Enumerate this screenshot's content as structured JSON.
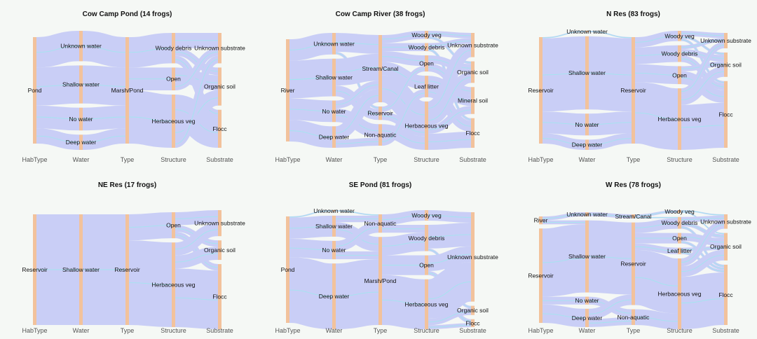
{
  "chart_data": [
    {
      "type": "sankey",
      "title": "Cow Camp Pond (14 frogs)",
      "axes": [
        "HabType",
        "Water",
        "Type",
        "Structure",
        "Substrate"
      ],
      "nodes": [
        [
          "Pond"
        ],
        [
          "Unknown water",
          "Shallow water",
          "No water",
          "Deep water"
        ],
        [
          "Marsh/Pond"
        ],
        [
          "Woody debris",
          "Open",
          "Herbaceous veg"
        ],
        [
          "Unknown substrate",
          "Organic soil",
          "Flocc"
        ]
      ],
      "flows": [
        [
          [
            0,
            0,
            4
          ],
          [
            0,
            1,
            5
          ],
          [
            0,
            2,
            3
          ],
          [
            0,
            3,
            2
          ]
        ],
        [
          [
            0,
            0,
            4
          ],
          [
            1,
            0,
            5
          ],
          [
            2,
            0,
            3
          ],
          [
            3,
            0,
            2
          ]
        ],
        [
          [
            0,
            0,
            4
          ],
          [
            0,
            1,
            3
          ],
          [
            0,
            2,
            7
          ]
        ],
        [
          [
            0,
            0,
            2
          ],
          [
            0,
            1,
            1
          ],
          [
            0,
            2,
            1
          ],
          [
            1,
            1,
            2
          ],
          [
            1,
            0,
            1
          ],
          [
            2,
            2,
            4
          ],
          [
            2,
            1,
            2
          ],
          [
            2,
            0,
            1
          ]
        ]
      ]
    },
    {
      "type": "sankey",
      "title": "Cow Camp River (38 frogs)",
      "axes": [
        "HabType",
        "Water",
        "Type",
        "Structure",
        "Substrate"
      ],
      "nodes": [
        [
          "River"
        ],
        [
          "Unknown water",
          "Shallow water",
          "No water",
          "Deep water"
        ],
        [
          "Stream/Canal",
          "Reservoir",
          "Non-aquatic"
        ],
        [
          "Woody veg",
          "Woody debris",
          "Open",
          "Leaf litter",
          "Herbaceous veg"
        ],
        [
          "Unknown substrate",
          "Organic soil",
          "Mineral soil",
          "Flocc"
        ]
      ],
      "flows": [
        [
          [
            0,
            0,
            8
          ],
          [
            0,
            1,
            14
          ],
          [
            0,
            2,
            8
          ],
          [
            0,
            3,
            8
          ]
        ],
        [
          [
            0,
            0,
            7
          ],
          [
            0,
            1,
            1
          ],
          [
            1,
            0,
            10
          ],
          [
            1,
            1,
            4
          ],
          [
            2,
            0,
            3
          ],
          [
            2,
            2,
            5
          ],
          [
            3,
            0,
            5
          ],
          [
            3,
            2,
            3
          ]
        ],
        [
          [
            0,
            0,
            3
          ],
          [
            0,
            1,
            3
          ],
          [
            0,
            2,
            4
          ],
          [
            0,
            3,
            5
          ],
          [
            0,
            4,
            10
          ],
          [
            1,
            2,
            2
          ],
          [
            1,
            4,
            3
          ],
          [
            2,
            4,
            5
          ],
          [
            2,
            3,
            3
          ]
        ],
        [
          [
            0,
            0,
            2
          ],
          [
            0,
            1,
            1
          ],
          [
            1,
            0,
            2
          ],
          [
            1,
            3,
            1
          ],
          [
            2,
            1,
            3
          ],
          [
            2,
            2,
            3
          ],
          [
            3,
            2,
            4
          ],
          [
            3,
            3,
            4
          ],
          [
            4,
            0,
            5
          ],
          [
            4,
            1,
            4
          ],
          [
            4,
            2,
            3
          ],
          [
            4,
            3,
            6
          ]
        ]
      ]
    },
    {
      "type": "sankey",
      "title": "N Res (83 frogs)",
      "axes": [
        "HabType",
        "Water",
        "Type",
        "Structure",
        "Substrate"
      ],
      "nodes": [
        [
          "Reservoir"
        ],
        [
          "Unknown water",
          "Shallow water",
          "No water",
          "Deep water"
        ],
        [
          "Reservoir"
        ],
        [
          "Woody veg",
          "Woody debris",
          "Open",
          "Herbaceous veg"
        ],
        [
          "Unknown substrate",
          "Organic soil",
          "Flocc"
        ]
      ],
      "flows": [
        [
          [
            0,
            0,
            1
          ],
          [
            0,
            1,
            57
          ],
          [
            0,
            2,
            17
          ],
          [
            0,
            3,
            8
          ]
        ],
        [
          [
            0,
            0,
            1
          ],
          [
            1,
            0,
            57
          ],
          [
            2,
            0,
            17
          ],
          [
            3,
            0,
            8
          ]
        ],
        [
          [
            0,
            0,
            8
          ],
          [
            0,
            1,
            13
          ],
          [
            0,
            2,
            14
          ],
          [
            0,
            3,
            48
          ]
        ],
        [
          [
            0,
            0,
            4
          ],
          [
            0,
            1,
            2
          ],
          [
            0,
            2,
            2
          ],
          [
            1,
            0,
            3
          ],
          [
            1,
            1,
            5
          ],
          [
            1,
            2,
            5
          ],
          [
            2,
            1,
            4
          ],
          [
            2,
            2,
            10
          ],
          [
            3,
            0,
            5
          ],
          [
            3,
            1,
            8
          ],
          [
            3,
            2,
            35
          ]
        ]
      ]
    },
    {
      "type": "sankey",
      "title": "NE Res (17 frogs)",
      "axes": [
        "HabType",
        "Water",
        "Type",
        "Structure",
        "Substrate"
      ],
      "nodes": [
        [
          "Reservoir"
        ],
        [
          "Shallow water"
        ],
        [
          "Reservoir"
        ],
        [
          "Open",
          "Herbaceous veg"
        ],
        [
          "Unknown substrate",
          "Organic soil",
          "Flocc"
        ]
      ],
      "flows": [
        [
          [
            0,
            0,
            17
          ]
        ],
        [
          [
            0,
            0,
            17
          ]
        ],
        [
          [
            0,
            0,
            4
          ],
          [
            0,
            1,
            13
          ]
        ],
        [
          [
            0,
            0,
            2
          ],
          [
            0,
            1,
            1
          ],
          [
            0,
            2,
            1
          ],
          [
            1,
            0,
            2
          ],
          [
            1,
            1,
            2
          ],
          [
            1,
            2,
            9
          ]
        ]
      ]
    },
    {
      "type": "sankey",
      "title": "SE Pond (81 frogs)",
      "axes": [
        "HabType",
        "Water",
        "Type",
        "Structure",
        "Substrate"
      ],
      "nodes": [
        [
          "Pond"
        ],
        [
          "Unknown water",
          "Shallow water",
          "No water",
          "Deep water"
        ],
        [
          "Non-aquatic",
          "Marsh/Pond"
        ],
        [
          "Woody veg",
          "Woody debris",
          "Open",
          "Herbaceous veg"
        ],
        [
          "Unknown substrate",
          "Organic soil",
          "Flocc"
        ]
      ],
      "flows": [
        [
          [
            0,
            0,
            1
          ],
          [
            0,
            1,
            16
          ],
          [
            0,
            2,
            14
          ],
          [
            0,
            3,
            50
          ]
        ],
        [
          [
            0,
            0,
            1
          ],
          [
            1,
            0,
            5
          ],
          [
            1,
            1,
            11
          ],
          [
            2,
            0,
            8
          ],
          [
            2,
            1,
            6
          ],
          [
            3,
            1,
            50
          ]
        ],
        [
          [
            0,
            0,
            8
          ],
          [
            0,
            1,
            6
          ],
          [
            1,
            1,
            14
          ],
          [
            1,
            2,
            15
          ],
          [
            1,
            3,
            38
          ]
        ],
        [
          [
            0,
            0,
            8
          ],
          [
            1,
            0,
            18
          ],
          [
            1,
            1,
            2
          ],
          [
            2,
            0,
            12
          ],
          [
            2,
            2,
            3
          ],
          [
            3,
            0,
            30
          ],
          [
            3,
            1,
            5
          ],
          [
            3,
            2,
            3
          ]
        ]
      ]
    },
    {
      "type": "sankey",
      "title": "W Res (78 frogs)",
      "axes": [
        "HabType",
        "Water",
        "Type",
        "Structure",
        "Substrate"
      ],
      "nodes": [
        [
          "River",
          "Reservoir"
        ],
        [
          "Unknown water",
          "Shallow water",
          "No water",
          "Deep water"
        ],
        [
          "Stream/Canal",
          "Reservoir",
          "Non-aquatic"
        ],
        [
          "Woody veg",
          "Woody debris",
          "Open",
          "Leaf litter",
          "Herbaceous veg"
        ],
        [
          "Unknown substrate",
          "Organic soil",
          "Flocc"
        ]
      ],
      "flows": [
        [
          [
            0,
            0,
            3
          ],
          [
            0,
            1,
            3
          ],
          [
            1,
            1,
            52
          ],
          [
            1,
            2,
            6
          ],
          [
            1,
            3,
            14
          ]
        ],
        [
          [
            0,
            0,
            3
          ],
          [
            1,
            1,
            55
          ],
          [
            2,
            2,
            6
          ],
          [
            3,
            1,
            8
          ],
          [
            3,
            2,
            6
          ]
        ],
        [
          [
            0,
            0,
            2
          ],
          [
            0,
            1,
            1
          ],
          [
            1,
            1,
            8
          ],
          [
            1,
            2,
            8
          ],
          [
            1,
            3,
            5
          ],
          [
            1,
            4,
            42
          ],
          [
            2,
            4,
            12
          ]
        ],
        [
          [
            0,
            0,
            1
          ],
          [
            0,
            1,
            1
          ],
          [
            1,
            0,
            4
          ],
          [
            1,
            1,
            3
          ],
          [
            1,
            2,
            2
          ],
          [
            2,
            1,
            6
          ],
          [
            2,
            2,
            2
          ],
          [
            3,
            1,
            3
          ],
          [
            3,
            2,
            2
          ],
          [
            4,
            0,
            6
          ],
          [
            4,
            1,
            8
          ],
          [
            4,
            2,
            40
          ]
        ]
      ]
    }
  ]
}
